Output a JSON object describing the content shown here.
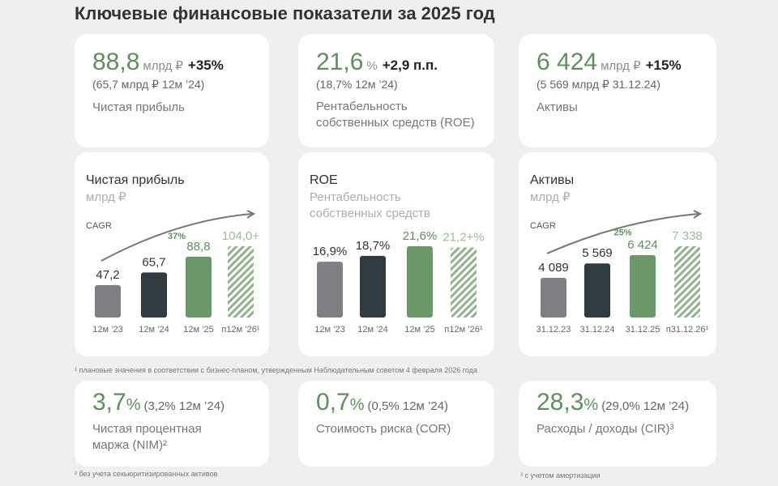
{
  "title": "Ключевые финансовые показатели за 2025 год",
  "kpis": [
    {
      "value": "88,8",
      "unit": "млрд ₽",
      "change": "+35%",
      "previous": "(65,7 млрд ₽ 12м ’24)",
      "label": "Чистая прибыль"
    },
    {
      "value": "21,6",
      "unit": "%",
      "change": "+2,9 п.п.",
      "previous": "(18,7% 12м ’24)",
      "label": "Рентабельность собственных средств (ROE)"
    },
    {
      "value": "6 424",
      "unit": "млрд ₽",
      "change": "+15%",
      "previous": "(5 569 млрд ₽ 31.12.24)",
      "label": "Активы"
    }
  ],
  "chart_data": [
    {
      "type": "bar",
      "title": "Чистая прибыль",
      "subtitle": "млрд ₽",
      "annotation": "CAGR",
      "cagr": "37%",
      "categories": [
        "12м ’23",
        "12м ’24",
        "12м ’25",
        "п12м ’26¹"
      ],
      "values": [
        47.2,
        65.7,
        88.8,
        104.0
      ],
      "value_labels": [
        "47,2",
        "65,7",
        "88,8",
        "104,0+"
      ],
      "colors": [
        "#7d7f82",
        "#2f3b3e",
        "#6a9868",
        "#8fb28c"
      ],
      "hatched": [
        false,
        false,
        false,
        true
      ]
    },
    {
      "type": "bar",
      "title": "ROE",
      "subtitle": "Рентабельность собственных средств",
      "categories": [
        "12м ’23",
        "12м ’24",
        "12м ’25",
        "п12м ’26¹"
      ],
      "values": [
        16.9,
        18.7,
        21.6,
        21.2
      ],
      "value_labels": [
        "16,9%",
        "18,7%",
        "21,6%",
        "21,2+%"
      ],
      "colors": [
        "#7d7f82",
        "#2f3b3e",
        "#6a9868",
        "#8fb28c"
      ],
      "hatched": [
        false,
        false,
        false,
        true
      ]
    },
    {
      "type": "bar",
      "title": "Активы",
      "subtitle": "млрд ₽",
      "annotation": "CAGR",
      "cagr": "25%",
      "categories": [
        "31.12.23",
        "31.12.24",
        "31.12.25",
        "п31.12.26¹"
      ],
      "values": [
        4089,
        5569,
        6424,
        7338
      ],
      "value_labels": [
        "4 089",
        "5 569",
        "6 424",
        "7 338"
      ],
      "colors": [
        "#7d7f82",
        "#2f3b3e",
        "#6a9868",
        "#8fb28c"
      ],
      "hatched": [
        false,
        false,
        false,
        true
      ]
    }
  ],
  "footnote_plan": "¹ плановые значения в соответствии с бизнес-планом, утвержденным Наблюдательным советом 4 февраля 2026 года",
  "ratios": [
    {
      "value": "3,7",
      "unit": "%",
      "previous": "(3,2% 12м ’24)",
      "label": "Чистая процентная маржа (NIM)²"
    },
    {
      "value": "0,7",
      "unit": "%",
      "previous": "(0,5% 12м ’24)",
      "label": "Стоимость риска (COR)"
    },
    {
      "value": "28,3",
      "unit": "%",
      "previous": "(29,0% 12м ’24)",
      "label": "Расходы / доходы (CIR)³"
    }
  ],
  "footnote_nim": "² без учета секьюритизированных активов",
  "footnote_cir": "³ с учетом амортизации"
}
